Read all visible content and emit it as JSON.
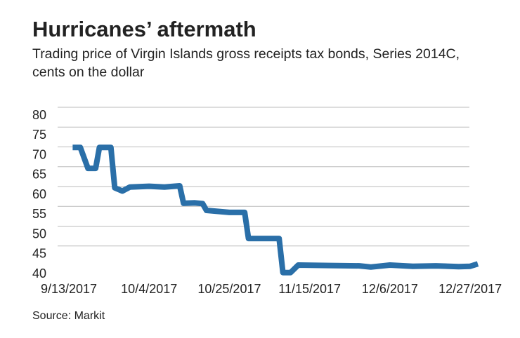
{
  "chart_data": {
    "type": "line",
    "title": "Hurricanes’ aftermath",
    "subtitle": "Trading price of Virgin Islands gross receipts tax bonds, Series 2014C, cents on the dollar",
    "source": "Source: Markit",
    "x": [
      "2017-09-14",
      "2017-09-16",
      "2017-09-18",
      "2017-09-20",
      "2017-09-21",
      "2017-09-24",
      "2017-09-25",
      "2017-09-27",
      "2017-09-29",
      "2017-10-04",
      "2017-10-08",
      "2017-10-12",
      "2017-10-13",
      "2017-10-16",
      "2017-10-18",
      "2017-10-19",
      "2017-10-25",
      "2017-10-29",
      "2017-10-30",
      "2017-11-07",
      "2017-11-08",
      "2017-11-10",
      "2017-11-12",
      "2017-11-20",
      "2017-11-28",
      "2017-12-01",
      "2017-12-06",
      "2017-12-12",
      "2017-12-18",
      "2017-12-24",
      "2017-12-27",
      "2017-12-29"
    ],
    "series": [
      {
        "name": "Trading price",
        "color": "#2a6fa8",
        "values": [
          72,
          72,
          66.7,
          66.7,
          72,
          72,
          61.8,
          61,
          62,
          62.2,
          62,
          62.3,
          57.9,
          58,
          57.8,
          56.1,
          55.6,
          55.6,
          49,
          49,
          40.4,
          40.4,
          42.3,
          42.2,
          42.1,
          41.8,
          42.3,
          42,
          42.1,
          41.9,
          42,
          42.6
        ]
      }
    ],
    "xlim": [
      "2017-09-13",
      "2017-12-29"
    ],
    "xticks": [
      {
        "value": "2017-09-13",
        "label": "9/13/2017"
      },
      {
        "value": "2017-10-04",
        "label": "10/4/2017"
      },
      {
        "value": "2017-10-25",
        "label": "10/25/2017"
      },
      {
        "value": "2017-11-15",
        "label": "11/15/2017"
      },
      {
        "value": "2017-12-06",
        "label": "12/6/2017"
      },
      {
        "value": "2017-12-27",
        "label": "12/27/2017"
      }
    ],
    "ylim": [
      40,
      80
    ],
    "yticks": [
      40,
      45,
      50,
      55,
      60,
      65,
      70,
      75,
      80
    ],
    "grid": true
  }
}
